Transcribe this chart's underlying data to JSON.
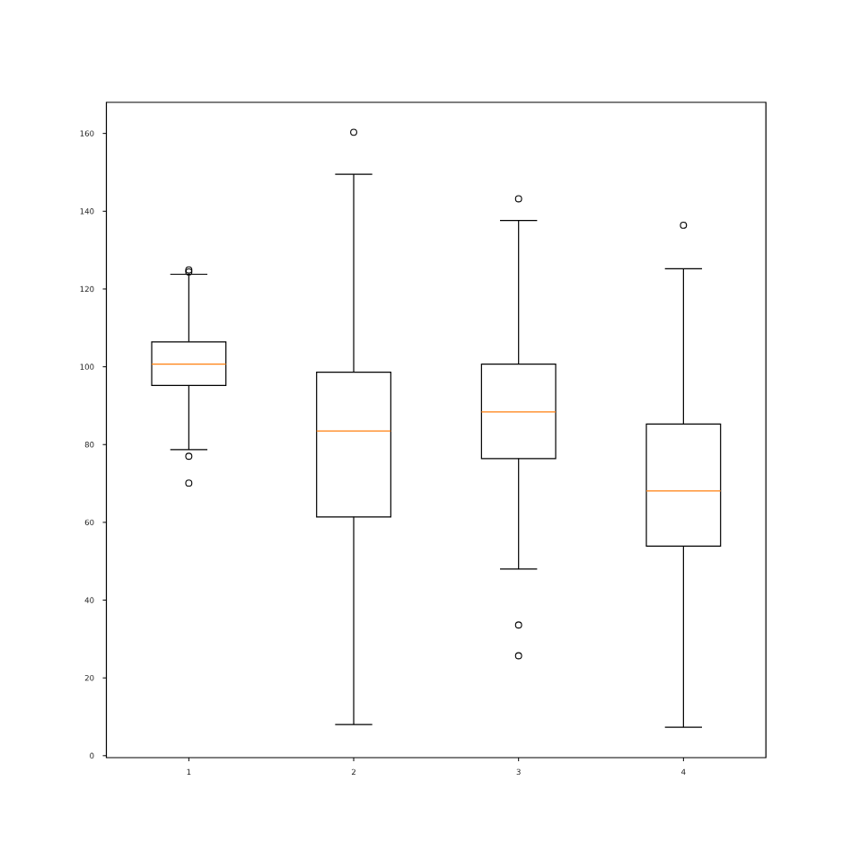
{
  "chart_data": {
    "type": "box",
    "categories": [
      "1",
      "2",
      "3",
      "4"
    ],
    "boxes": [
      {
        "low": 78.7,
        "q1": 95.2,
        "median": 100.7,
        "q3": 106.4,
        "high": 123.8,
        "outliers": [
          124.4,
          124.9,
          77.0,
          70.1
        ]
      },
      {
        "low": 8.0,
        "q1": 61.4,
        "median": 83.5,
        "q3": 98.6,
        "high": 149.5,
        "outliers": [
          160.3
        ]
      },
      {
        "low": 48.0,
        "q1": 76.4,
        "median": 88.4,
        "q3": 100.7,
        "high": 137.6,
        "outliers": [
          143.2,
          33.6,
          25.7
        ]
      },
      {
        "low": 7.3,
        "q1": 53.9,
        "median": 68.1,
        "q3": 85.3,
        "high": 125.2,
        "outliers": [
          136.4
        ]
      }
    ],
    "ylim": [
      -0.5,
      168
    ],
    "yticks": [
      0,
      20,
      40,
      60,
      80,
      100,
      120,
      140,
      160
    ],
    "marker": "circle"
  }
}
